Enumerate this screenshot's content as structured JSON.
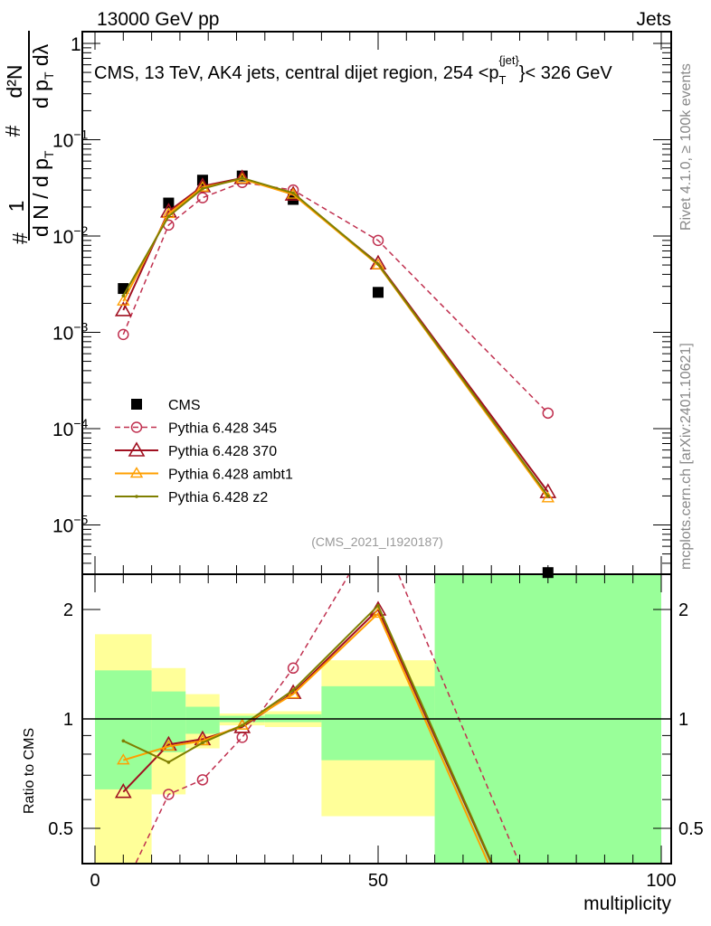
{
  "header": {
    "left": "13000 GeV pp",
    "right": "Jets"
  },
  "side_labels": {
    "rivet": "Rivet 4.1.0, ≥ 100k events",
    "mcplots": "mcplots.cern.ch [arXiv:2401.10621]"
  },
  "analysis_id": "(CMS_2021_I1920187)",
  "chart_data": [
    {
      "type": "line",
      "title": "CMS, 13 TeV, AK4 jets, central dijet region, 254 < p_T^{jet} < 326 GeV",
      "title_parts": {
        "main": "CMS, 13 TeV, AK4 jets, central dijet region, 254 <p",
        "sub": "T",
        "sup": "{jet}",
        "end": "}< 326 GeV"
      },
      "ylabel": {
        "hash": "#",
        "num1": "1",
        "den1": "d N / d p",
        "den1_sub": "T",
        "hash2": "#",
        "num2": "d²N",
        "den2": "d p",
        "den2_sub": "T",
        "den2_end": " dλ"
      },
      "yscale": "log",
      "ylim": [
        3e-06,
        1.3
      ],
      "yticks": [
        {
          "v": 1,
          "label": "1"
        },
        {
          "v": 0.1,
          "label": "10",
          "exp": "−1"
        },
        {
          "v": 0.01,
          "label": "10",
          "exp": "−2"
        },
        {
          "v": 0.001,
          "label": "10",
          "exp": "−3"
        },
        {
          "v": 0.0001,
          "label": "10",
          "exp": "−4"
        },
        {
          "v": 1e-05,
          "label": "10",
          "exp": "−5"
        }
      ],
      "x": [
        5,
        13,
        19,
        26,
        35,
        50,
        80
      ],
      "legend_position": "bottom-left",
      "series": [
        {
          "name": "CMS",
          "marker": "square",
          "color": "#000000",
          "values": [
            0.00285,
            0.022,
            0.038,
            0.042,
            0.024,
            0.0026,
            3.2e-06
          ]
        },
        {
          "name": "Pythia 6.428 345",
          "marker": "circle",
          "dashed": true,
          "color": "#c0304f",
          "values": [
            0.00095,
            0.013,
            0.025,
            0.036,
            0.03,
            0.009,
            0.000145
          ]
        },
        {
          "name": "Pythia 6.428 370",
          "marker": "triangle",
          "color": "#a01020",
          "values": [
            0.0017,
            0.018,
            0.033,
            0.04,
            0.027,
            0.0052,
            2.2e-05
          ]
        },
        {
          "name": "Pythia 6.428 ambt1",
          "marker": "triangle-small",
          "color": "#ff9f00",
          "values": [
            0.0021,
            0.017,
            0.032,
            0.039,
            0.027,
            0.005,
            1.9e-05
          ]
        },
        {
          "name": "Pythia 6.428 z2",
          "marker": "dot",
          "color": "#7f7f00",
          "values": [
            0.0024,
            0.016,
            0.031,
            0.04,
            0.028,
            0.0051,
            2e-05
          ]
        }
      ]
    },
    {
      "type": "line",
      "ylabel": "Ratio to CMS",
      "xlabel": "multiplicity",
      "yscale": "log",
      "ylim": [
        0.4,
        2.5
      ],
      "xlim": [
        -2,
        102
      ],
      "xticks": [
        {
          "v": 0,
          "label": "0"
        },
        {
          "v": 50,
          "label": "50"
        },
        {
          "v": 100,
          "label": "100"
        }
      ],
      "yticks": [
        {
          "v": 2,
          "label": "2"
        },
        {
          "v": 1,
          "label": "1"
        },
        {
          "v": 0.5,
          "label": "0.5"
        }
      ],
      "bin_edges": [
        0,
        10,
        16,
        22,
        30,
        40,
        60,
        100
      ],
      "band_outer": {
        "color": "#ffff99",
        "lo": [
          0.3,
          0.62,
          0.83,
          0.96,
          0.95,
          0.54,
          0.1
        ],
        "hi": [
          1.71,
          1.38,
          1.17,
          1.035,
          1.05,
          1.45,
          10
        ]
      },
      "band_inner": {
        "color": "#99ff99",
        "lo": [
          0.64,
          0.81,
          0.91,
          0.98,
          0.98,
          0.77,
          0.1
        ],
        "hi": [
          1.36,
          1.19,
          1.08,
          1.02,
          1.03,
          1.23,
          10
        ]
      },
      "x": [
        5,
        13,
        19,
        26,
        35,
        50,
        80
      ],
      "series": [
        {
          "name": "Pythia 6.428 345",
          "values": [
            0.34,
            0.62,
            0.68,
            0.89,
            1.38,
            3.4,
            0.26
          ]
        },
        {
          "name": "Pythia 6.428 370",
          "values": [
            0.63,
            0.85,
            0.88,
            0.95,
            1.18,
            2.0,
            0.18
          ]
        },
        {
          "name": "Pythia 6.428 ambt1",
          "values": [
            0.77,
            0.84,
            0.87,
            0.96,
            1.17,
            1.95,
            0.17
          ]
        },
        {
          "name": "Pythia 6.428 z2",
          "values": [
            0.87,
            0.76,
            0.86,
            0.96,
            1.2,
            2.05,
            0.18
          ]
        }
      ]
    }
  ]
}
